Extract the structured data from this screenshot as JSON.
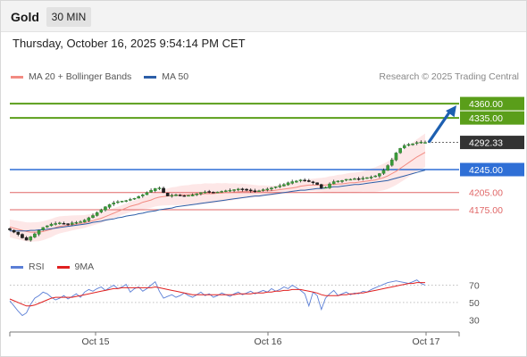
{
  "header": {
    "symbol": "Gold",
    "timeframe": "30 MIN"
  },
  "datetime": "Thursday, October 16, 2025 9:54:14 PM CET",
  "legend": {
    "items": [
      {
        "label": "MA 20 + Bollinger Bands",
        "color": "#f28b82"
      },
      {
        "label": "MA 50",
        "color": "#2c5ea8"
      }
    ],
    "copyright": "Research © 2025 Trading Central"
  },
  "rsi_legend": {
    "items": [
      {
        "label": "RSI",
        "color": "#5b7fd6"
      },
      {
        "label": "9MA",
        "color": "#e02020"
      }
    ]
  },
  "chart_data": [
    {
      "type": "line",
      "title": "",
      "x_tick_labels": [
        "Oct 15",
        "Oct 16",
        "Oct 17"
      ],
      "y_range": [
        4105,
        4385
      ],
      "grid": false,
      "last_price": {
        "value": 4292.33,
        "label": "4292.33",
        "color": "#333333"
      },
      "levels": [
        {
          "value": 4360.0,
          "label": "4360.00",
          "kind": "resistance",
          "color": "#5a9e1a"
        },
        {
          "value": 4335.0,
          "label": "4335.00",
          "kind": "resistance",
          "color": "#5a9e1a"
        },
        {
          "value": 4245.0,
          "label": "4245.00",
          "kind": "pivot",
          "color": "#2f6fd6"
        },
        {
          "value": 4205.0,
          "label": "4205.00",
          "kind": "support",
          "color": "#e06666"
        },
        {
          "value": 4175.0,
          "label": "4175.00",
          "kind": "support",
          "color": "#e06666"
        }
      ],
      "target_arrow": {
        "from": 4292.33,
        "to": 4360.0,
        "color": "#1d5fb0"
      },
      "series": [
        {
          "name": "Gold",
          "style": "candlestick",
          "close": [
            4140,
            4136,
            4132,
            4126,
            4122,
            4128,
            4133,
            4139,
            4144,
            4147,
            4150,
            4151,
            4152,
            4151,
            4150,
            4152,
            4153,
            4154,
            4157,
            4161,
            4165,
            4170,
            4175,
            4180,
            4184,
            4187,
            4189,
            4190,
            4191,
            4193,
            4195,
            4198,
            4201,
            4205,
            4209,
            4212,
            4213,
            4205,
            4199,
            4200,
            4201,
            4200,
            4199,
            4200,
            4201,
            4203,
            4205,
            4206,
            4206,
            4205,
            4206,
            4207,
            4208,
            4209,
            4210,
            4211,
            4210,
            4209,
            4208,
            4207,
            4208,
            4210,
            4211,
            4213,
            4215,
            4217,
            4219,
            4222,
            4224,
            4225,
            4227,
            4226,
            4224,
            4222,
            4219,
            4213,
            4214,
            4220,
            4224,
            4225,
            4226,
            4228,
            4228,
            4229,
            4229,
            4230,
            4231,
            4232,
            4234,
            4238,
            4244,
            4252,
            4262,
            4274,
            4282,
            4287,
            4289,
            4290,
            4292,
            4293,
            4292.33
          ]
        },
        {
          "name": "MA 20",
          "style": "line",
          "values": [
            4145,
            4143,
            4141,
            4139,
            4137,
            4136,
            4136,
            4136,
            4137,
            4139,
            4141,
            4144,
            4146,
            4147,
            4148,
            4149,
            4150,
            4151,
            4152,
            4154,
            4156,
            4158,
            4160,
            4163,
            4166,
            4169,
            4172,
            4175,
            4178,
            4181,
            4183,
            4185,
            4188,
            4190,
            4192,
            4195,
            4197,
            4198,
            4199,
            4200,
            4200,
            4201,
            4201,
            4201,
            4202,
            4202,
            4202,
            4203,
            4203,
            4203,
            4204,
            4204,
            4205,
            4205,
            4206,
            4206,
            4207,
            4207,
            4207,
            4207,
            4207,
            4208,
            4208,
            4208,
            4209,
            4210,
            4211,
            4212,
            4213,
            4214,
            4216,
            4217,
            4218,
            4218,
            4218,
            4218,
            4218,
            4219,
            4219,
            4220,
            4220,
            4221,
            4222,
            4222,
            4223,
            4224,
            4225,
            4226,
            4227,
            4229,
            4231,
            4234,
            4238,
            4242,
            4247,
            4252,
            4257,
            4262,
            4267,
            4271,
            4275
          ]
        },
        {
          "name": "MA 50",
          "style": "line",
          "values": [
            4138,
            4138,
            4138,
            4138,
            4138,
            4139,
            4139,
            4140,
            4140,
            4141,
            4142,
            4143,
            4144,
            4145,
            4146,
            4147,
            4148,
            4149,
            4150,
            4151,
            4153,
            4154,
            4155,
            4157,
            4158,
            4159,
            4161,
            4162,
            4164,
            4165,
            4166,
            4168,
            4169,
            4171,
            4172,
            4173,
            4175,
            4176,
            4177,
            4178,
            4180,
            4181,
            4182,
            4183,
            4184,
            4185,
            4186,
            4187,
            4188,
            4189,
            4190,
            4191,
            4192,
            4193,
            4194,
            4195,
            4196,
            4197,
            4198,
            4199,
            4199,
            4200,
            4201,
            4202,
            4203,
            4204,
            4205,
            4206,
            4207,
            4208,
            4209,
            4209,
            4210,
            4211,
            4212,
            4212,
            4213,
            4214,
            4215,
            4215,
            4216,
            4217,
            4218,
            4219,
            4219,
            4220,
            4221,
            4222,
            4223,
            4224,
            4225,
            4226,
            4228,
            4230,
            4232,
            4234,
            4236,
            4238,
            4240,
            4242,
            4244
          ]
        }
      ]
    },
    {
      "type": "line",
      "title": "",
      "y_range": [
        20,
        85
      ],
      "y_ticks": [
        "70",
        "50",
        "30"
      ],
      "x_tick_labels": [
        "Oct 15",
        "Oct 16",
        "Oct 17"
      ],
      "series": [
        {
          "name": "RSI",
          "values": [
            52,
            46,
            40,
            35,
            38,
            48,
            55,
            58,
            62,
            60,
            56,
            53,
            55,
            58,
            54,
            57,
            60,
            56,
            62,
            65,
            63,
            66,
            68,
            64,
            67,
            70,
            66,
            68,
            71,
            62,
            66,
            68,
            63,
            66,
            70,
            74,
            63,
            55,
            57,
            59,
            56,
            58,
            61,
            58,
            56,
            59,
            62,
            58,
            60,
            56,
            58,
            61,
            59,
            57,
            60,
            62,
            59,
            61,
            63,
            60,
            62,
            64,
            62,
            66,
            63,
            65,
            68,
            66,
            70,
            67,
            64,
            60,
            46,
            62,
            58,
            42,
            55,
            60,
            64,
            58,
            60,
            62,
            59,
            61,
            60,
            63,
            62,
            65,
            67,
            69,
            71,
            73,
            74,
            75,
            74,
            73,
            72,
            74,
            76,
            72,
            70
          ]
        },
        {
          "name": "9MA",
          "values": [
            54,
            52,
            50,
            48,
            46,
            46,
            47,
            49,
            51,
            53,
            55,
            56,
            56,
            56,
            56,
            56,
            57,
            58,
            59,
            60,
            61,
            62,
            63,
            64,
            65,
            66,
            66,
            67,
            67,
            67,
            67,
            67,
            67,
            67,
            67,
            68,
            67,
            66,
            65,
            64,
            63,
            62,
            61,
            60,
            59,
            59,
            59,
            59,
            59,
            59,
            59,
            59,
            59,
            59,
            59,
            60,
            60,
            60,
            60,
            61,
            61,
            61,
            62,
            62,
            63,
            63,
            64,
            64,
            65,
            65,
            65,
            64,
            63,
            62,
            61,
            59,
            58,
            58,
            58,
            58,
            59,
            59,
            60,
            60,
            61,
            61,
            62,
            63,
            64,
            65,
            66,
            67,
            68,
            69,
            70,
            71,
            72,
            72,
            73,
            73,
            73
          ]
        }
      ]
    }
  ]
}
